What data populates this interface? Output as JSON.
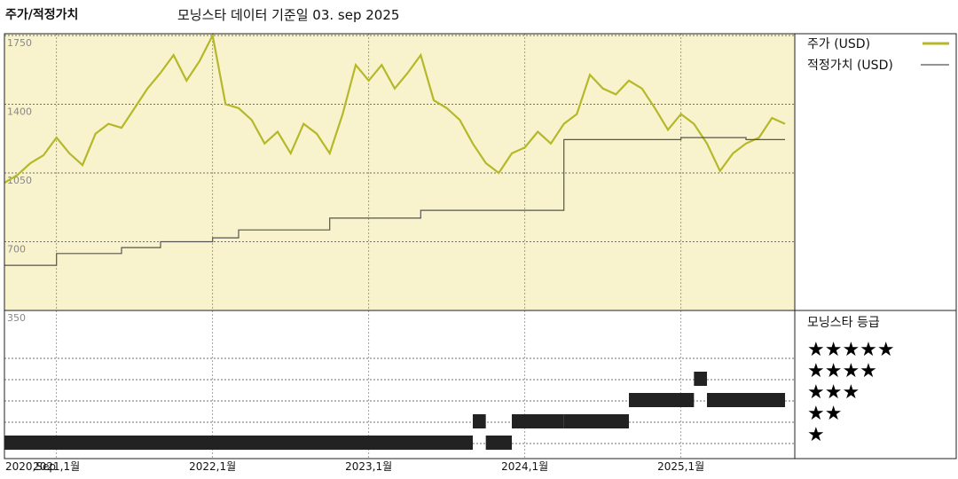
{
  "header": {
    "title": "주가/적정가치",
    "subtitle": "모닝스타 데이터 기준일 03. sep 2025"
  },
  "chart_data": {
    "type": "line",
    "y_ticks": [
      "1750",
      "1400",
      "1050",
      "700",
      "350"
    ],
    "y_tick_values": [
      1750,
      1400,
      1050,
      700,
      350
    ],
    "ylim": [
      350,
      1750
    ],
    "x_ticks": [
      "2020,Sep",
      "2021,1월",
      "2022,1월",
      "2023,1월",
      "2024,1월",
      "2025,1월"
    ],
    "x_tick_dates": [
      "2020-09",
      "2021-01",
      "2022-01",
      "2023-01",
      "2024-01",
      "2025-01"
    ],
    "x_range": [
      "2020-09",
      "2025-09"
    ],
    "grid": true,
    "legend_position": "right",
    "series": [
      {
        "name": "주가 (USD)",
        "color": "#b5b82a",
        "points": [
          [
            "2020-09",
            1000
          ],
          [
            "2020-10",
            1040
          ],
          [
            "2020-11",
            1100
          ],
          [
            "2020-12",
            1140
          ],
          [
            "2021-01",
            1230
          ],
          [
            "2021-02",
            1150
          ],
          [
            "2021-03",
            1090
          ],
          [
            "2021-04",
            1250
          ],
          [
            "2021-05",
            1300
          ],
          [
            "2021-06",
            1280
          ],
          [
            "2021-07",
            1380
          ],
          [
            "2021-08",
            1480
          ],
          [
            "2021-09",
            1560
          ],
          [
            "2021-10",
            1650
          ],
          [
            "2021-11",
            1520
          ],
          [
            "2021-12",
            1620
          ],
          [
            "2022-01",
            1750
          ],
          [
            "2022-02",
            1400
          ],
          [
            "2022-03",
            1380
          ],
          [
            "2022-04",
            1320
          ],
          [
            "2022-05",
            1200
          ],
          [
            "2022-06",
            1260
          ],
          [
            "2022-07",
            1150
          ],
          [
            "2022-08",
            1300
          ],
          [
            "2022-09",
            1250
          ],
          [
            "2022-10",
            1150
          ],
          [
            "2022-11",
            1350
          ],
          [
            "2022-12",
            1600
          ],
          [
            "2023-01",
            1520
          ],
          [
            "2023-02",
            1600
          ],
          [
            "2023-03",
            1480
          ],
          [
            "2023-04",
            1560
          ],
          [
            "2023-05",
            1650
          ],
          [
            "2023-06",
            1420
          ],
          [
            "2023-07",
            1380
          ],
          [
            "2023-08",
            1320
          ],
          [
            "2023-09",
            1200
          ],
          [
            "2023-10",
            1100
          ],
          [
            "2023-11",
            1050
          ],
          [
            "2023-12",
            1150
          ],
          [
            "2024-01",
            1180
          ],
          [
            "2024-02",
            1260
          ],
          [
            "2024-03",
            1200
          ],
          [
            "2024-04",
            1300
          ],
          [
            "2024-05",
            1350
          ],
          [
            "2024-06",
            1550
          ],
          [
            "2024-07",
            1480
          ],
          [
            "2024-08",
            1450
          ],
          [
            "2024-09",
            1520
          ],
          [
            "2024-10",
            1480
          ],
          [
            "2024-11",
            1380
          ],
          [
            "2024-12",
            1270
          ],
          [
            "2025-01",
            1350
          ],
          [
            "2025-02",
            1300
          ],
          [
            "2025-03",
            1200
          ],
          [
            "2025-04",
            1060
          ],
          [
            "2025-05",
            1150
          ],
          [
            "2025-06",
            1200
          ],
          [
            "2025-07",
            1230
          ],
          [
            "2025-08",
            1330
          ],
          [
            "2025-09",
            1300
          ]
        ]
      },
      {
        "name": "적정가치 (USD)",
        "color": "#555555",
        "points": [
          [
            "2020-09",
            580
          ],
          [
            "2021-01",
            640
          ],
          [
            "2021-06",
            670
          ],
          [
            "2021-09",
            700
          ],
          [
            "2022-01",
            720
          ],
          [
            "2022-03",
            760
          ],
          [
            "2022-10",
            820
          ],
          [
            "2023-05",
            860
          ],
          [
            "2024-04",
            1220
          ],
          [
            "2025-01",
            1230
          ],
          [
            "2025-06",
            1220
          ],
          [
            "2025-09",
            1220
          ]
        ]
      }
    ],
    "rating": {
      "title": "모닝스타 등급",
      "levels": [
        "★★★★★",
        "★★★★",
        "★★★",
        "★★",
        "★"
      ],
      "periods": [
        {
          "start": "2020-09",
          "end": "2023-09",
          "stars": 1
        },
        {
          "start": "2023-09",
          "end": "2023-10",
          "stars": 2
        },
        {
          "start": "2023-10",
          "end": "2023-12",
          "stars": 1
        },
        {
          "start": "2023-12",
          "end": "2024-04",
          "stars": 2
        },
        {
          "start": "2024-04",
          "end": "2024-09",
          "stars": 2
        },
        {
          "start": "2024-09",
          "end": "2024-12",
          "stars": 3
        },
        {
          "start": "2024-12",
          "end": "2025-02",
          "stars": 3
        },
        {
          "start": "2025-02",
          "end": "2025-03",
          "stars": 4
        },
        {
          "start": "2025-03",
          "end": "2025-09",
          "stars": 3
        }
      ]
    }
  }
}
